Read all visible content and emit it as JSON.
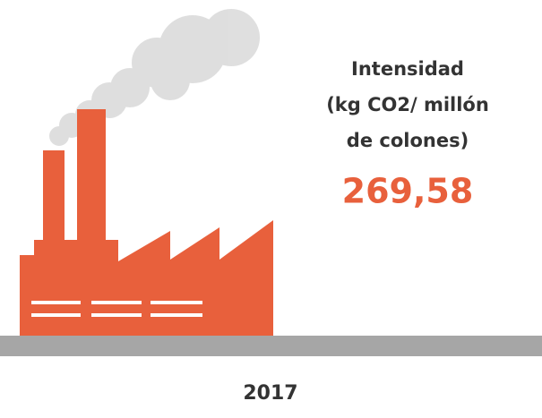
{
  "infographic": {
    "label_lines": [
      "Intensidad",
      "(kg CO2/ millón",
      "de colones)"
    ],
    "value": "269,58",
    "year": "2017"
  }
}
